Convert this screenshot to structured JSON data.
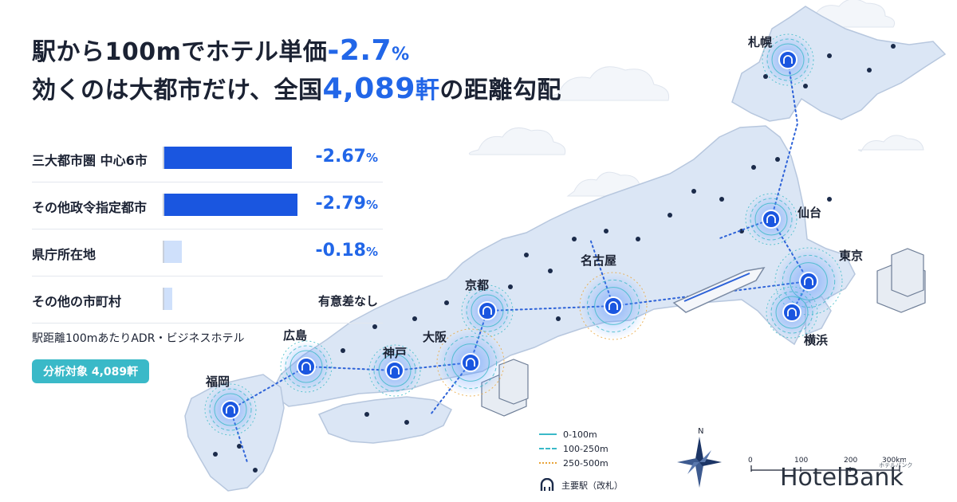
{
  "headline": {
    "line1_pre": "駅から100mでホテル単価",
    "line1_value": "-2.7",
    "line1_unit": "%",
    "line2_pre": "効くのは大都市だけ、全国",
    "line2_value": "4,089",
    "line2_unit": "軒",
    "line2_post": "の距離勾配"
  },
  "chart_data": {
    "type": "bar",
    "orientation": "horizontal",
    "categories": [
      "三大都市圏 中心6市",
      "その他政令指定都市",
      "県庁所在地",
      "その他の市町村"
    ],
    "values": [
      -2.67,
      -2.79,
      -0.18,
      null
    ],
    "value_labels": [
      "-2.67",
      "-2.79",
      "-0.18",
      "有意差なし"
    ],
    "unit": "%"
  },
  "footnote": "駅距離100mあたりADR・ビジネスホテル",
  "badge": "分析対象 4,089軒",
  "cities": [
    {
      "id": "sapporo",
      "name": "札幌"
    },
    {
      "id": "sendai",
      "name": "仙台"
    },
    {
      "id": "tokyo",
      "name": "東京"
    },
    {
      "id": "yokohama",
      "name": "横浜"
    },
    {
      "id": "nagoya",
      "name": "名古屋"
    },
    {
      "id": "kyoto",
      "name": "京都"
    },
    {
      "id": "osaka",
      "name": "大阪"
    },
    {
      "id": "kobe",
      "name": "神戸"
    },
    {
      "id": "hiroshima",
      "name": "広島"
    },
    {
      "id": "fukuoka",
      "name": "福岡"
    }
  ],
  "legend": {
    "items": [
      "0-100m",
      "100-250m",
      "250-500m"
    ],
    "station": "主要駅（改札）"
  },
  "compass_label": "N",
  "scale": {
    "ticks": [
      "0",
      "100",
      "200",
      "300km"
    ]
  },
  "brand": {
    "logo": "HotelBank",
    "sub": "ホテルバンク"
  },
  "colors": {
    "accent": "#2166e8",
    "bar": "#1a56e0",
    "bar_light": "#cfe0fb",
    "badge": "#3ab9c8",
    "land": "#dbe6f5",
    "rail": "#2e63d8"
  }
}
